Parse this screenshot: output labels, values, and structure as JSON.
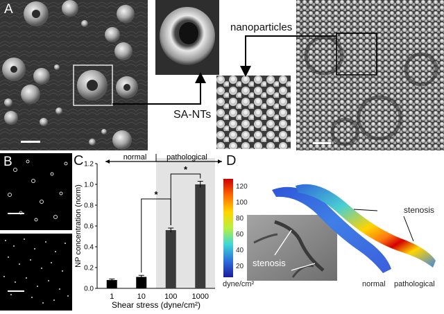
{
  "panels": {
    "a": {
      "letter": "A",
      "callout_nanoparticles": "nanoparticles",
      "callout_sant": "SA-NTs"
    },
    "b": {
      "letter": "B"
    },
    "c": {
      "letter": "C"
    },
    "d": {
      "letter": "D"
    }
  },
  "chart_data": {
    "type": "bar",
    "categories": [
      "1",
      "10",
      "100",
      "1000"
    ],
    "values": [
      0.08,
      0.11,
      0.56,
      1.0
    ],
    "errors": [
      0.01,
      0.015,
      0.02,
      0.03
    ],
    "bar_color": "#000000",
    "xlabel": "Shear stress (dyne/cm²)",
    "ylabel": "NP concentration (norm)",
    "ylim": [
      0,
      1.2
    ],
    "yticks": [
      "0.0",
      "0.2",
      "0.4",
      "0.6",
      "0.8",
      "1.0",
      "1.2"
    ],
    "regions": [
      {
        "label": "normal",
        "range": "1–10"
      },
      {
        "label": "pathological",
        "range": "100–1000",
        "shade": "#e3e3e3"
      }
    ],
    "significance": [
      "*",
      "*"
    ]
  },
  "colorbar": {
    "ticks": [
      "120",
      "100",
      "80",
      "60",
      "40",
      "20"
    ],
    "unit": "dyne/cm²",
    "colors": [
      "#cc0000",
      "#ff6a00",
      "#ffd400",
      "#b8f040",
      "#3fd7d7",
      "#2f6fdc",
      "#1c1c9a"
    ]
  },
  "panel_d_labels": {
    "stenosis_inset": "stenosis",
    "stenosis_model": "stenosis",
    "normal": "normal",
    "pathological": "pathological"
  }
}
